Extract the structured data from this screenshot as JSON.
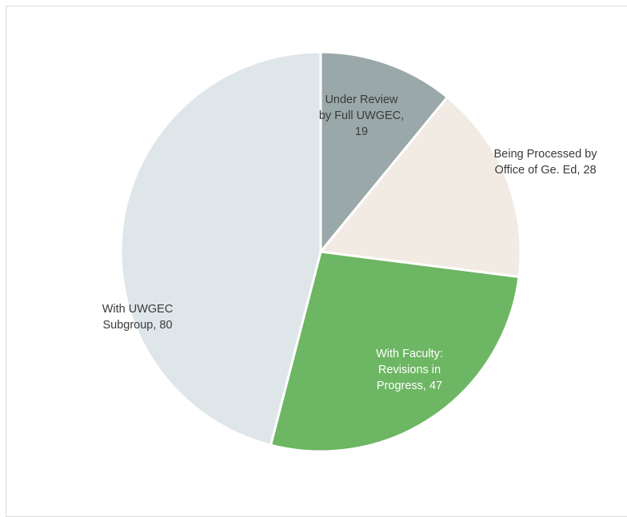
{
  "chart_data": {
    "type": "pie",
    "slices": [
      {
        "name": "Under Review by Full UWGEC",
        "value": 19,
        "color": "#9aa8a9",
        "label_lines": [
          "Under Review",
          "by Full UWGEC,",
          "19"
        ],
        "label_color": "#3a3a3a"
      },
      {
        "name": "Being Processed by Office of Ge. Ed",
        "value": 28,
        "color": "#f2ebe3",
        "label_lines": [
          "Being Processed by",
          "Office of Ge. Ed, 28"
        ],
        "label_color": "#3a3a3a"
      },
      {
        "name": "With Faculty: Revisions in Progress",
        "value": 47,
        "color": "#6db663",
        "label_lines": [
          "With Faculty:",
          "Revisions in",
          "Progress, 47"
        ],
        "label_color": "#ffffff"
      },
      {
        "name": "With UWGEC Subgroup",
        "value": 80,
        "color": "#dfe6ea",
        "label_lines": [
          "With UWGEC",
          "Subgroup, 80"
        ],
        "label_color": "#3a3a3a"
      }
    ],
    "start_angle_deg": 0,
    "direction": "clockwise"
  }
}
